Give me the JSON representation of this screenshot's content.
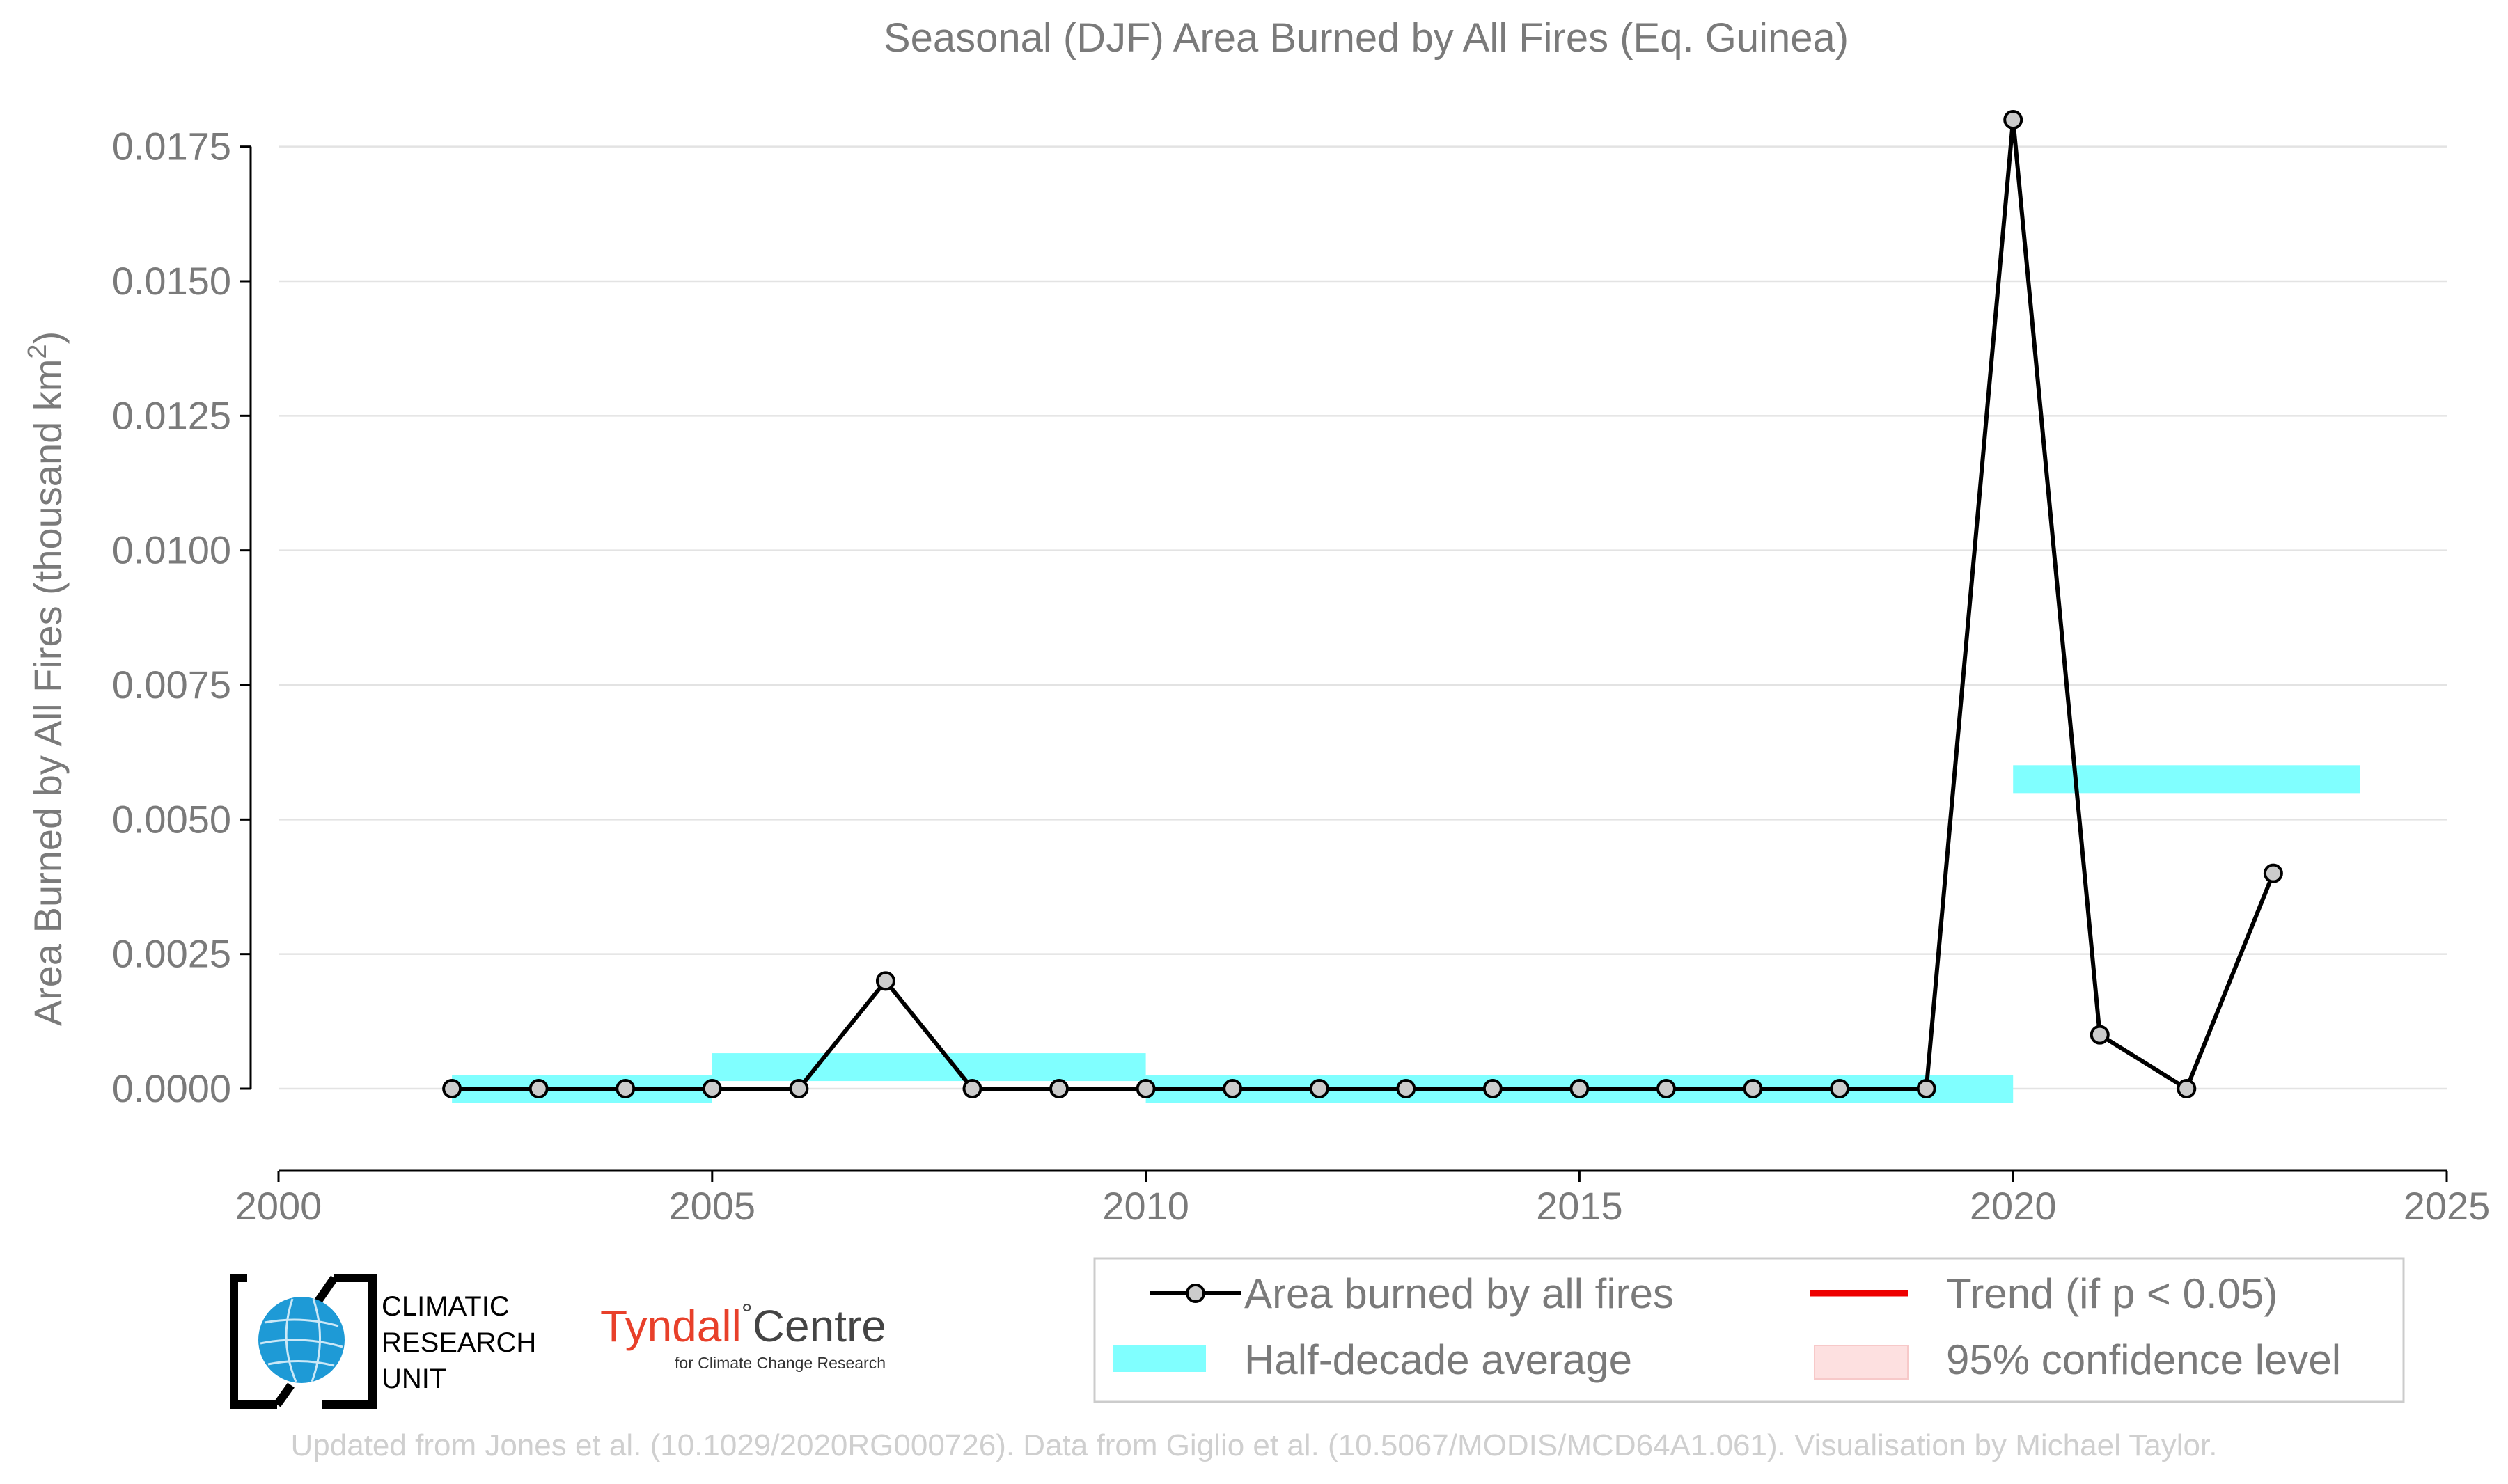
{
  "chart_data": {
    "type": "line",
    "title": "Seasonal (DJF) Area Burned by All Fires (Eq. Guinea)",
    "xlabel": "",
    "ylabel": "Area Burned by All Fires (thousand km",
    "ylabel_sup": "2",
    "ylabel_close": ")",
    "xlim": [
      2000,
      2025
    ],
    "ylim": [
      -0.0015,
      0.018
    ],
    "x_ticks": [
      2000,
      2005,
      2010,
      2015,
      2020,
      2025
    ],
    "x_tick_labels": [
      "2000",
      "2005",
      "2010",
      "2015",
      "2020",
      "2025"
    ],
    "y_ticks": [
      0.0,
      0.0025,
      0.005,
      0.0075,
      0.01,
      0.0125,
      0.015,
      0.0175
    ],
    "y_tick_labels": [
      "0.0000",
      "0.0025",
      "0.0050",
      "0.0075",
      "0.0100",
      "0.0125",
      "0.0150",
      "0.0175"
    ],
    "grid": true,
    "legend_position": "bottom-right",
    "series": [
      {
        "name": "Area burned by all fires",
        "color": "#000000",
        "marker_fill": "#cccccc",
        "x": [
          2002,
          2003,
          2004,
          2005,
          2006,
          2007,
          2008,
          2009,
          2010,
          2011,
          2012,
          2013,
          2014,
          2015,
          2016,
          2017,
          2018,
          2019,
          2020,
          2021,
          2022,
          2023
        ],
        "y": [
          0,
          0,
          0,
          0,
          0,
          0.002,
          0,
          0,
          0,
          0,
          0,
          0,
          0,
          0,
          0,
          0,
          0,
          0,
          0.018,
          0.001,
          0,
          0.004
        ]
      }
    ],
    "half_decade_average": {
      "name": "Half-decade average",
      "color": "#80ffff",
      "segments": [
        {
          "x0": 2002,
          "x1": 2005,
          "y": 0.0
        },
        {
          "x0": 2005,
          "x1": 2010,
          "y": 0.0004
        },
        {
          "x0": 2010,
          "x1": 2020,
          "y": 0.0
        },
        {
          "x0": 2020,
          "x1": 2024,
          "y": 0.00575
        }
      ]
    },
    "legend": [
      {
        "label": "Area burned by all fires",
        "kind": "line-marker",
        "color": "#000000"
      },
      {
        "label": "Trend (if p < 0.05)",
        "kind": "line",
        "color": "#ee0000"
      },
      {
        "label": "Half-decade average",
        "kind": "band",
        "color": "#80ffff"
      },
      {
        "label": "95% confidence level",
        "kind": "band",
        "color": "#fde0e0"
      }
    ]
  },
  "logos": {
    "cru_line1": "CLIMATIC",
    "cru_line2": "RESEARCH",
    "cru_line3": "UNIT",
    "tyndall_main": "Tyndall",
    "tyndall_degree": "°",
    "tyndall_centre": "Centre",
    "tyndall_sub": "for Climate Change Research"
  },
  "credit": "Updated from Jones et al. (10.1029/2020RG000726). Data from Giglio et al. (10.5067/MODIS/MCD64A1.061). Visualisation by Michael Taylor."
}
